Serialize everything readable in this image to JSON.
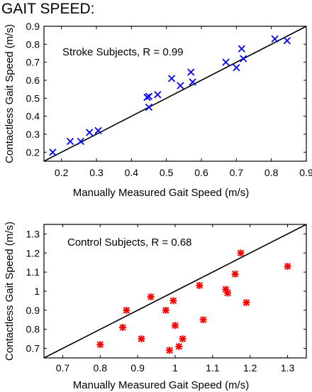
{
  "figure_title": "GAIT SPEED:",
  "colors": {
    "stroke_marker": "#0000ff",
    "control_marker": "#ff0000",
    "axis": "#000000",
    "fit_line": "#000000"
  },
  "chart_data": [
    {
      "type": "scatter",
      "marker": "x",
      "annotation": "Stroke Subjects, R = 0.99",
      "xlabel": "Manually Measured Gait Speed (m/s)",
      "ylabel": "Contactless Gait Speed (m/s)",
      "xlim": [
        0.15,
        0.9
      ],
      "ylim": [
        0.15,
        0.9
      ],
      "xticks": [
        0.2,
        0.3,
        0.4,
        0.5,
        0.6,
        0.7,
        0.8,
        0.9
      ],
      "yticks": [
        0.2,
        0.3,
        0.4,
        0.5,
        0.6,
        0.7,
        0.8,
        0.9
      ],
      "xtick_labels": [
        "0.2",
        "0.3",
        "0.4",
        "0.5",
        "0.6",
        "0.7",
        "0.8",
        "0.9"
      ],
      "ytick_labels": [
        "0.2",
        "0.3",
        "0.4",
        "0.5",
        "0.6",
        "0.7",
        "0.8",
        "0.9"
      ],
      "reference_line": [
        [
          0.15,
          0.15
        ],
        [
          0.9,
          0.9
        ]
      ],
      "points": [
        {
          "x": 0.175,
          "y": 0.2
        },
        {
          "x": 0.225,
          "y": 0.26
        },
        {
          "x": 0.255,
          "y": 0.26
        },
        {
          "x": 0.28,
          "y": 0.31
        },
        {
          "x": 0.305,
          "y": 0.32
        },
        {
          "x": 0.445,
          "y": 0.505
        },
        {
          "x": 0.45,
          "y": 0.51
        },
        {
          "x": 0.45,
          "y": 0.45
        },
        {
          "x": 0.475,
          "y": 0.52
        },
        {
          "x": 0.515,
          "y": 0.61
        },
        {
          "x": 0.54,
          "y": 0.57
        },
        {
          "x": 0.57,
          "y": 0.645
        },
        {
          "x": 0.575,
          "y": 0.59
        },
        {
          "x": 0.67,
          "y": 0.7
        },
        {
          "x": 0.7,
          "y": 0.67
        },
        {
          "x": 0.715,
          "y": 0.775
        },
        {
          "x": 0.72,
          "y": 0.72
        },
        {
          "x": 0.81,
          "y": 0.83
        },
        {
          "x": 0.845,
          "y": 0.82
        }
      ]
    },
    {
      "type": "scatter",
      "marker": "asterisk",
      "annotation": "Control Subjects, R = 0.68",
      "xlabel": "Manually Measured Gait Speed (m/s)",
      "ylabel": "Contactless Gait Speed (m/s)",
      "xlim": [
        0.65,
        1.35
      ],
      "ylim": [
        0.65,
        1.35
      ],
      "xticks": [
        0.7,
        0.8,
        0.9,
        1.0,
        1.1,
        1.2,
        1.3
      ],
      "yticks": [
        0.7,
        0.8,
        0.9,
        1.0,
        1.1,
        1.2,
        1.3
      ],
      "xtick_labels": [
        "0.7",
        "0.8",
        "0.9",
        "1",
        "1.1",
        "1.2",
        "1.3"
      ],
      "ytick_labels": [
        "0.7",
        "0.8",
        "0.9",
        "1",
        "1.1",
        "1.2",
        "1.3"
      ],
      "reference_line": [
        [
          0.65,
          0.65
        ],
        [
          1.35,
          1.35
        ]
      ],
      "points": [
        {
          "x": 0.8,
          "y": 0.72
        },
        {
          "x": 0.86,
          "y": 0.81
        },
        {
          "x": 0.87,
          "y": 0.9
        },
        {
          "x": 0.91,
          "y": 0.75
        },
        {
          "x": 0.935,
          "y": 0.97
        },
        {
          "x": 0.975,
          "y": 0.9
        },
        {
          "x": 0.985,
          "y": 0.69
        },
        {
          "x": 0.995,
          "y": 0.95
        },
        {
          "x": 1.0,
          "y": 0.82
        },
        {
          "x": 1.01,
          "y": 0.71
        },
        {
          "x": 1.02,
          "y": 0.75
        },
        {
          "x": 1.065,
          "y": 1.03
        },
        {
          "x": 1.075,
          "y": 0.85
        },
        {
          "x": 1.135,
          "y": 1.01
        },
        {
          "x": 1.14,
          "y": 0.99
        },
        {
          "x": 1.16,
          "y": 1.09
        },
        {
          "x": 1.175,
          "y": 1.2
        },
        {
          "x": 1.19,
          "y": 0.94
        },
        {
          "x": 1.3,
          "y": 1.13
        }
      ]
    }
  ]
}
